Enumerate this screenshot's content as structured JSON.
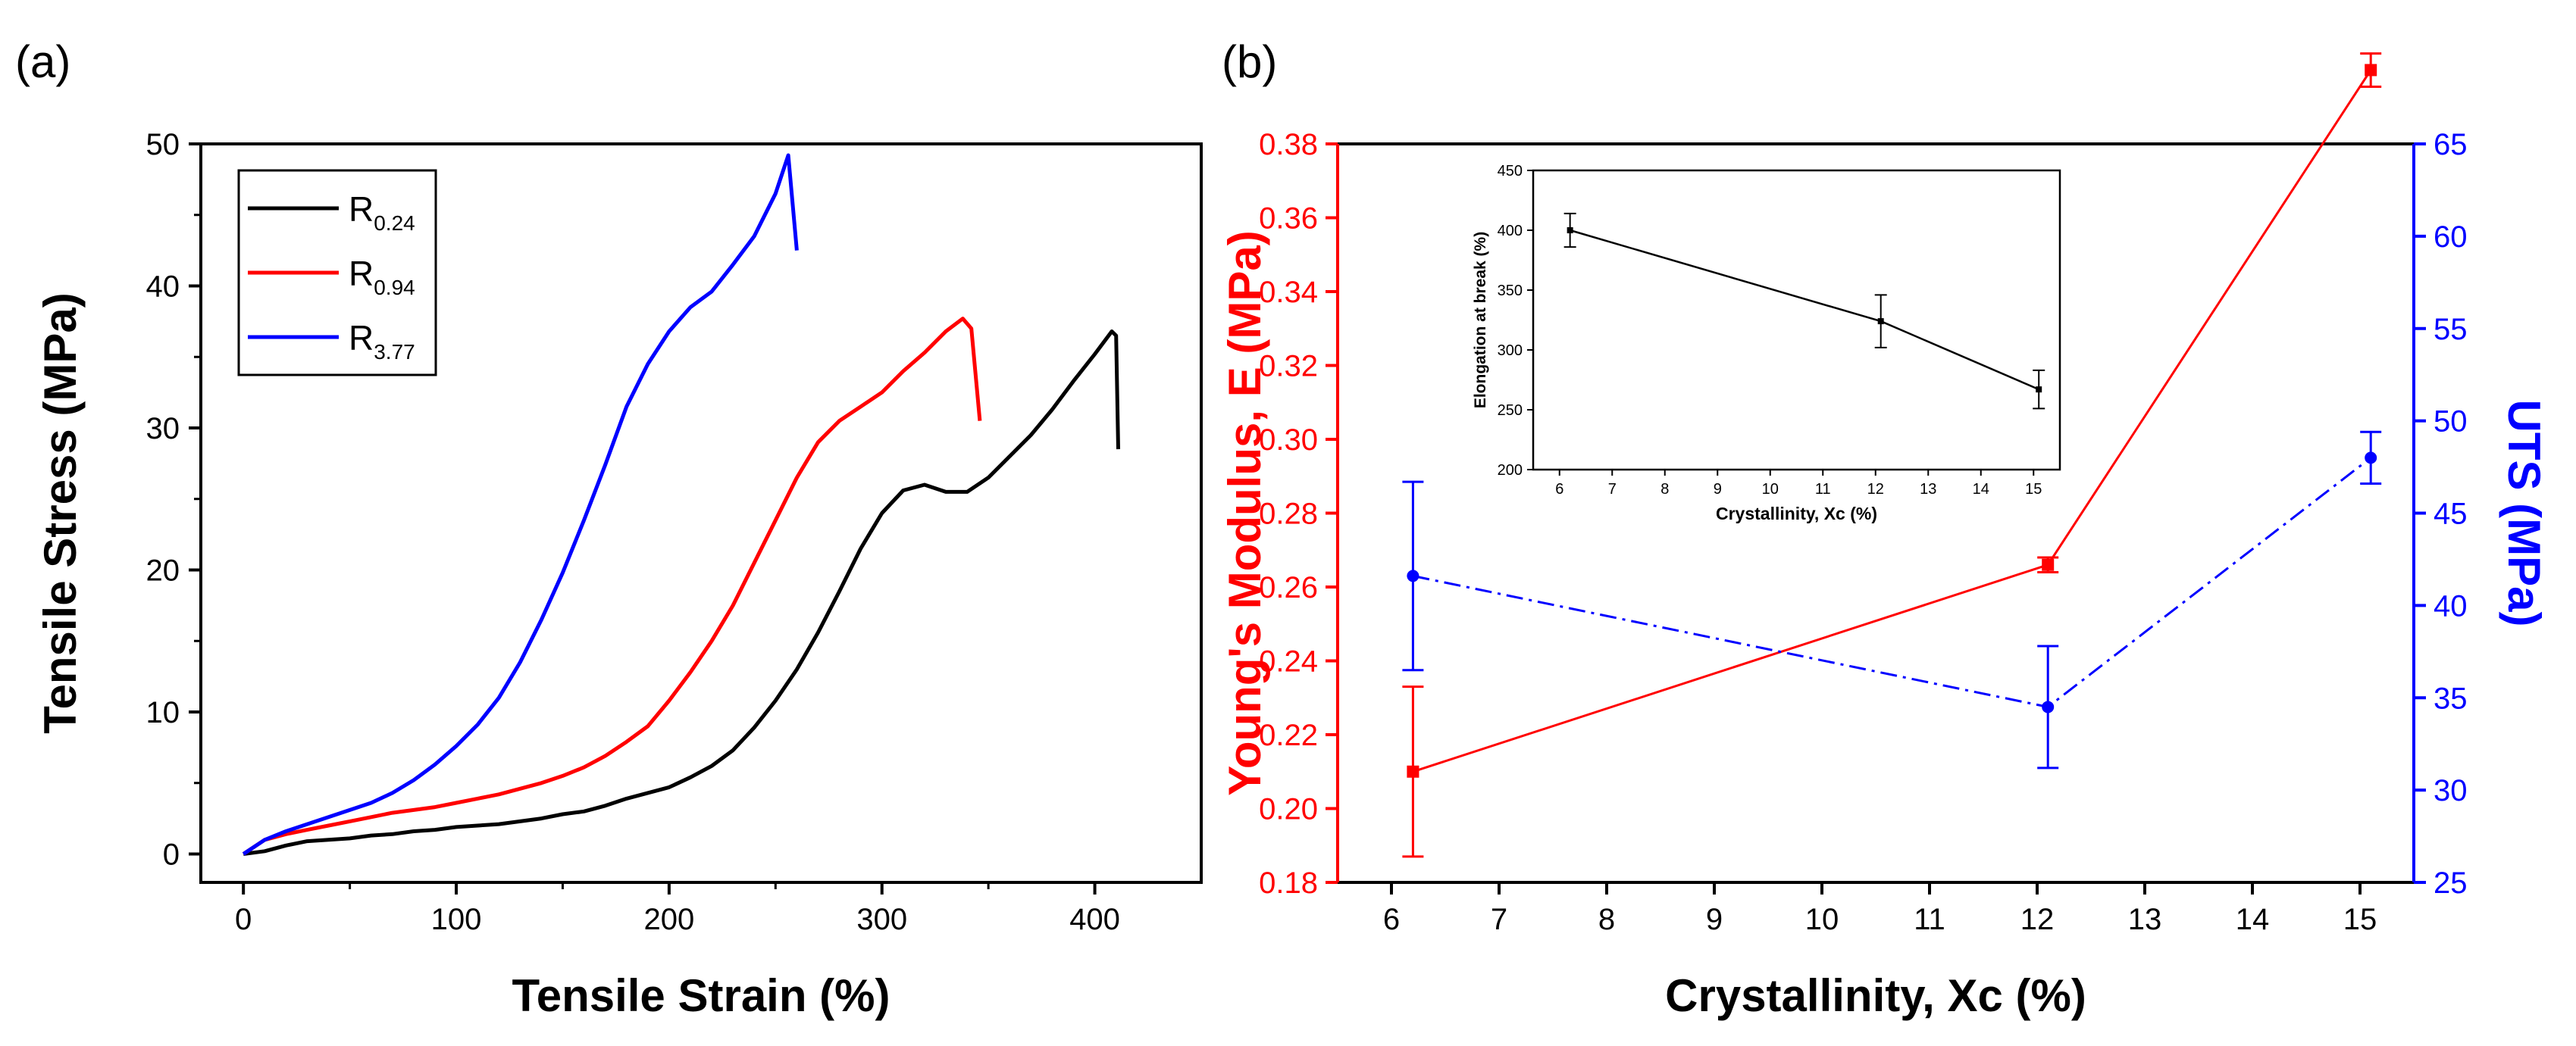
{
  "panels": {
    "a": {
      "label": "(a)"
    },
    "b": {
      "label": "(b)"
    }
  },
  "chart_data": [
    {
      "id": "a",
      "type": "line",
      "title": "",
      "xlabel": "Tensile Strain (%)",
      "ylabel": "Tensile Stress (MPa)",
      "xlim": [
        -20,
        450
      ],
      "ylim": [
        -2,
        50
      ],
      "xticks": [
        0,
        100,
        200,
        300,
        400
      ],
      "yticks": [
        0,
        10,
        20,
        30,
        40,
        50
      ],
      "legend_position": "top-left",
      "series": [
        {
          "name": "R",
          "subscript": "0.24",
          "color": "#000000",
          "x": [
            0,
            10,
            20,
            30,
            40,
            50,
            60,
            70,
            80,
            90,
            100,
            110,
            120,
            130,
            140,
            150,
            160,
            170,
            180,
            190,
            200,
            210,
            220,
            230,
            240,
            250,
            260,
            270,
            280,
            290,
            300,
            310,
            320,
            330,
            340,
            350,
            360,
            370,
            380,
            390,
            400,
            408,
            410,
            411
          ],
          "y": [
            0,
            0.2,
            0.6,
            0.9,
            1.0,
            1.1,
            1.3,
            1.4,
            1.6,
            1.7,
            1.9,
            2.0,
            2.1,
            2.3,
            2.5,
            2.8,
            3.0,
            3.4,
            3.9,
            4.3,
            4.7,
            5.4,
            6.2,
            7.3,
            8.9,
            10.8,
            13.0,
            15.6,
            18.5,
            21.5,
            24.0,
            25.6,
            26.0,
            25.5,
            25.5,
            26.5,
            28.0,
            29.5,
            31.3,
            33.3,
            35.2,
            36.8,
            36.5,
            28.5
          ]
        },
        {
          "name": "R",
          "subscript": "0.94",
          "color": "#ff0000",
          "x": [
            0,
            10,
            20,
            30,
            40,
            50,
            60,
            70,
            80,
            90,
            100,
            110,
            120,
            130,
            140,
            150,
            160,
            170,
            180,
            190,
            200,
            210,
            220,
            230,
            240,
            250,
            260,
            270,
            280,
            290,
            300,
            310,
            320,
            330,
            338,
            342,
            346
          ],
          "y": [
            0,
            1.0,
            1.4,
            1.7,
            2.0,
            2.3,
            2.6,
            2.9,
            3.1,
            3.3,
            3.6,
            3.9,
            4.2,
            4.6,
            5.0,
            5.5,
            6.1,
            6.9,
            7.9,
            9.0,
            10.8,
            12.8,
            15.0,
            17.5,
            20.5,
            23.5,
            26.5,
            29.0,
            30.5,
            31.5,
            32.5,
            34.0,
            35.3,
            36.8,
            37.7,
            37.0,
            30.5
          ]
        },
        {
          "name": "R",
          "subscript": "3.77",
          "color": "#0000ff",
          "x": [
            0,
            10,
            20,
            30,
            40,
            50,
            60,
            70,
            80,
            90,
            100,
            110,
            120,
            130,
            140,
            150,
            160,
            170,
            180,
            190,
            200,
            210,
            220,
            230,
            240,
            250,
            256,
            260
          ],
          "y": [
            0,
            1.0,
            1.6,
            2.1,
            2.6,
            3.1,
            3.6,
            4.3,
            5.2,
            6.3,
            7.6,
            9.1,
            11.0,
            13.5,
            16.5,
            19.8,
            23.5,
            27.4,
            31.5,
            34.5,
            36.8,
            38.5,
            39.6,
            41.5,
            43.5,
            46.5,
            49.2,
            42.5
          ]
        }
      ]
    },
    {
      "id": "b",
      "type": "line",
      "title": "",
      "xlabel": "Crystallinity, Xc (%)",
      "ylabel": "Young's Modulus, E (MPa)",
      "y2label": "UTS (MPa)",
      "xlim": [
        5.5,
        15.5
      ],
      "ylim": [
        0.18,
        0.38
      ],
      "y2lim": [
        25,
        65
      ],
      "xticks": [
        6,
        7,
        8,
        9,
        10,
        11,
        12,
        13,
        14,
        15
      ],
      "yticks": [
        "0.18",
        "0.20",
        "0.22",
        "0.24",
        "0.26",
        "0.28",
        "0.30",
        "0.32",
        "0.34",
        "0.36",
        "0.38"
      ],
      "y2ticks": [
        25,
        30,
        35,
        40,
        45,
        50,
        55,
        60,
        65
      ],
      "series": [
        {
          "name": "Young's Modulus, E",
          "axis": "left",
          "color": "#ff0000",
          "style": "solid",
          "x": [
            6.2,
            12.1,
            15.1
          ],
          "y": [
            0.21,
            0.266,
            0.4
          ],
          "err": [
            0.023,
            0.002,
            0.0045
          ]
        },
        {
          "name": "UTS",
          "axis": "right",
          "color": "#0000ff",
          "style": "dash-dot",
          "x": [
            6.2,
            12.1,
            15.1
          ],
          "y": [
            41.6,
            34.5,
            48.0
          ],
          "err": [
            5.1,
            3.3,
            1.4
          ]
        }
      ]
    },
    {
      "id": "b-inset",
      "type": "line",
      "title": "",
      "xlabel": "Crystallinity, Xc (%)",
      "ylabel": "Elongation at break (%)",
      "xlim": [
        5.5,
        15.5
      ],
      "ylim": [
        200,
        450
      ],
      "xticks": [
        6,
        7,
        8,
        9,
        10,
        11,
        12,
        13,
        14,
        15
      ],
      "yticks": [
        200,
        250,
        300,
        350,
        400,
        450
      ],
      "series": [
        {
          "name": "Elongation at break",
          "color": "#000000",
          "x": [
            6.2,
            12.1,
            15.1
          ],
          "y": [
            400,
            324,
            267
          ],
          "err": [
            14,
            22,
            16
          ]
        }
      ]
    }
  ]
}
